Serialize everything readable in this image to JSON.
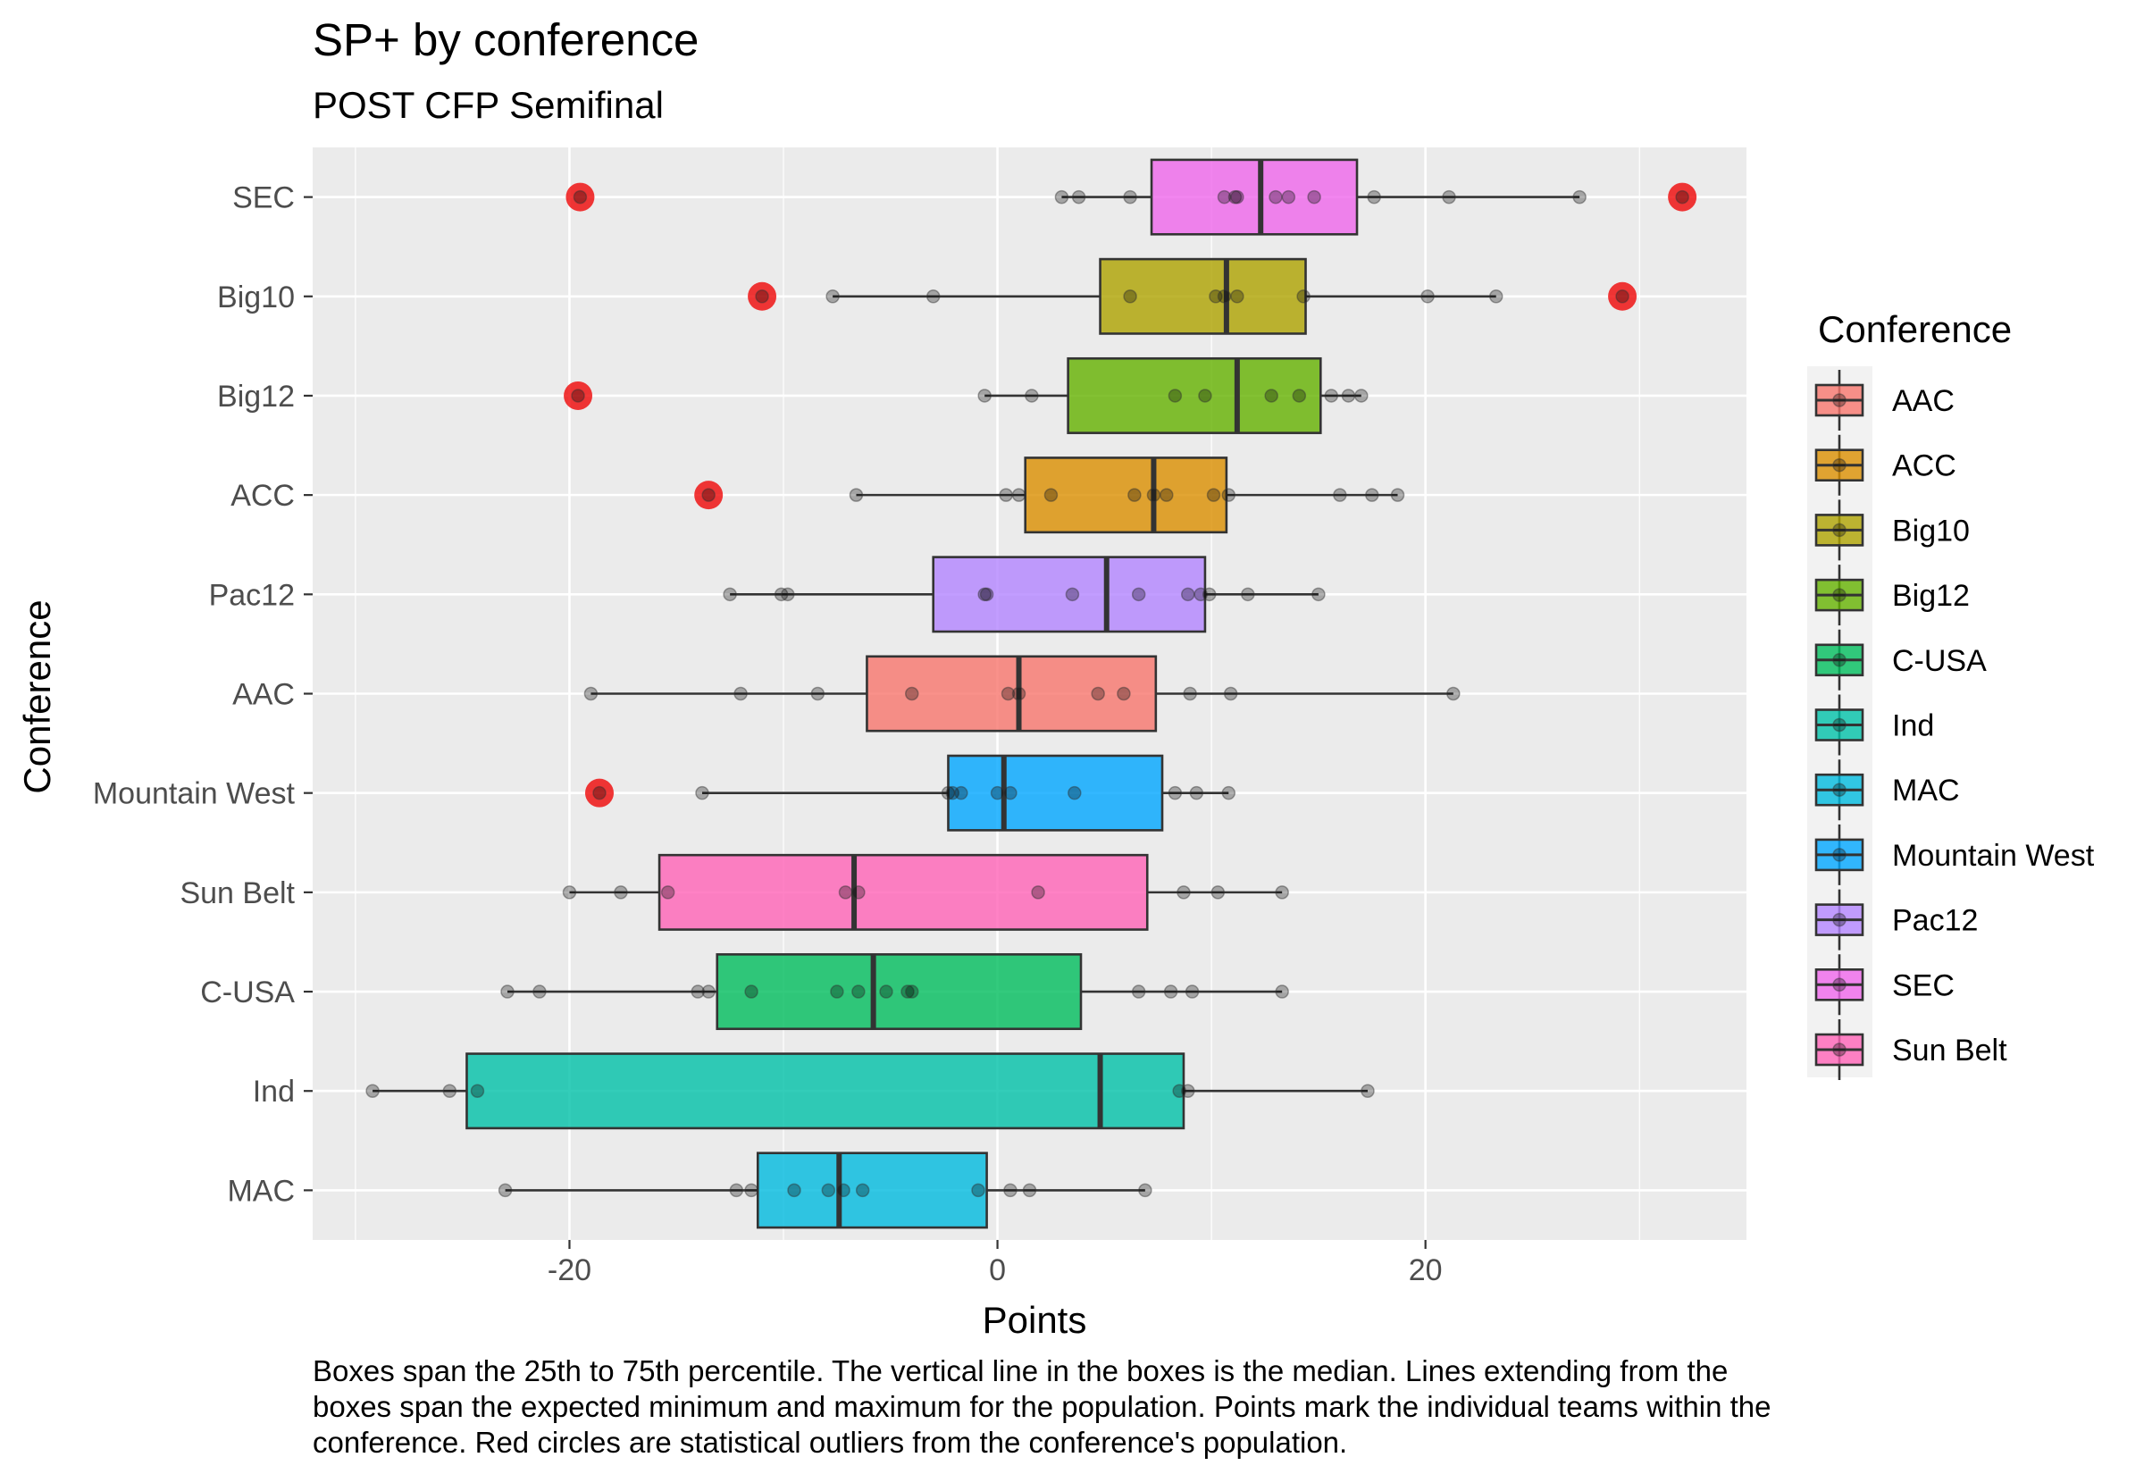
{
  "chart_data": {
    "type": "boxplot",
    "title": "SP+ by conference",
    "subtitle": "POST CFP Semifinal",
    "xlabel": "Points",
    "ylabel": "Conference",
    "xlim": [
      -32,
      35
    ],
    "x_ticks": [
      -20,
      0,
      20
    ],
    "x_tick_labels": [
      "-20",
      "0",
      "20"
    ],
    "grid": true,
    "legend_position": "right",
    "legend_title": "Conference",
    "legend": [
      "AAC",
      "ACC",
      "Big10",
      "Big12",
      "C-USA",
      "Ind",
      "MAC",
      "Mountain West",
      "Pac12",
      "SEC",
      "Sun Belt"
    ],
    "colors": {
      "AAC": "#F8766D",
      "ACC": "#DB8E00",
      "Big10": "#AEA200",
      "Big12": "#64B200",
      "C-USA": "#00BD5C",
      "Ind": "#00C1A7",
      "MAC": "#00BADE",
      "Mountain West": "#00A6FF",
      "Pac12": "#B385FF",
      "SEC": "#EF67EB",
      "Sun Belt": "#FF63B6"
    },
    "outlier_color": "#EE0000",
    "categories": [
      "SEC",
      "Big10",
      "Big12",
      "ACC",
      "Pac12",
      "AAC",
      "Mountain West",
      "Sun Belt",
      "C-USA",
      "Ind",
      "MAC"
    ],
    "series": [
      {
        "name": "SEC",
        "q1": 7.2,
        "median": 12.3,
        "q3": 16.8,
        "whisker_low": 3.0,
        "whisker_high": 27.2,
        "points": [
          3.0,
          3.8,
          6.2,
          10.6,
          11.1,
          11.2,
          13.0,
          13.6,
          14.8,
          17.6,
          21.1,
          27.2,
          -19.5,
          32.0
        ],
        "outliers": [
          -19.5,
          32.0
        ]
      },
      {
        "name": "Big10",
        "q1": 4.8,
        "median": 10.7,
        "q3": 14.4,
        "whisker_low": -7.7,
        "whisker_high": 23.3,
        "points": [
          -7.7,
          -3.0,
          6.2,
          10.2,
          10.6,
          11.2,
          14.3,
          20.1,
          23.3,
          -11.0,
          29.2
        ],
        "outliers": [
          -11.0,
          29.2
        ]
      },
      {
        "name": "Big12",
        "q1": 3.3,
        "median": 11.2,
        "q3": 15.1,
        "whisker_low": -0.6,
        "whisker_high": 17.0,
        "points": [
          -0.6,
          1.6,
          8.3,
          9.7,
          12.8,
          14.1,
          15.6,
          16.4,
          17.0,
          -19.6
        ],
        "outliers": [
          -19.6
        ]
      },
      {
        "name": "ACC",
        "q1": 1.3,
        "median": 7.3,
        "q3": 10.7,
        "whisker_low": -6.6,
        "whisker_high": 18.7,
        "points": [
          -6.6,
          0.4,
          1.0,
          2.5,
          6.4,
          7.3,
          7.9,
          10.1,
          10.8,
          16.0,
          17.5,
          18.7,
          -13.5
        ],
        "outliers": [
          -13.5
        ]
      },
      {
        "name": "Pac12",
        "q1": -3.0,
        "median": 5.1,
        "q3": 9.7,
        "whisker_low": -12.5,
        "whisker_high": 15.0,
        "points": [
          -12.5,
          -10.1,
          -9.8,
          -0.6,
          -0.5,
          3.5,
          6.6,
          8.9,
          9.5,
          9.9,
          11.7,
          15.0
        ],
        "outliers": []
      },
      {
        "name": "AAC",
        "q1": -6.1,
        "median": 1.0,
        "q3": 7.4,
        "whisker_low": -19.0,
        "whisker_high": 21.3,
        "points": [
          -19.0,
          -12.0,
          -8.4,
          -4.0,
          0.5,
          1.0,
          4.7,
          5.9,
          9.0,
          10.9,
          21.3
        ],
        "outliers": []
      },
      {
        "name": "Mountain West",
        "q1": -2.3,
        "median": 0.3,
        "q3": 7.7,
        "whisker_low": -13.8,
        "whisker_high": 10.8,
        "points": [
          -13.8,
          -2.3,
          -2.1,
          -1.7,
          0.0,
          0.6,
          3.6,
          8.3,
          9.3,
          10.8,
          -18.6
        ],
        "outliers": [
          -18.6
        ]
      },
      {
        "name": "Sun Belt",
        "q1": -15.8,
        "median": -6.7,
        "q3": 7.0,
        "whisker_low": -20.0,
        "whisker_high": 13.3,
        "points": [
          -20.0,
          -17.6,
          -15.4,
          -7.1,
          -6.5,
          1.9,
          8.7,
          10.3,
          13.3
        ],
        "outliers": []
      },
      {
        "name": "C-USA",
        "q1": -13.1,
        "median": -5.8,
        "q3": 3.9,
        "whisker_low": -22.9,
        "whisker_high": 13.3,
        "points": [
          -22.9,
          -21.4,
          -14.0,
          -13.5,
          -11.5,
          -7.5,
          -6.5,
          -5.2,
          -4.2,
          -4.0,
          6.6,
          8.1,
          9.1,
          13.3
        ],
        "outliers": []
      },
      {
        "name": "Ind",
        "q1": -24.8,
        "median": 4.8,
        "q3": 8.7,
        "whisker_low": -29.2,
        "whisker_high": 17.3,
        "points": [
          -29.2,
          -25.6,
          -24.3,
          8.5,
          8.9,
          17.3
        ],
        "outliers": []
      },
      {
        "name": "MAC",
        "q1": -11.2,
        "median": -7.4,
        "q3": -0.5,
        "whisker_low": -23.0,
        "whisker_high": 6.9,
        "points": [
          -23.0,
          -12.2,
          -11.5,
          -9.5,
          -7.9,
          -7.2,
          -6.3,
          -0.9,
          0.6,
          1.5,
          6.9
        ],
        "outliers": []
      }
    ]
  },
  "caption": {
    "line1": "Boxes span the 25th to 75th percentile. The vertical line in the boxes is the median. Lines extending from the",
    "line2": "boxes span the expected minimum and maximum for the population. Points mark the individual teams within the",
    "line3": "conference. Red circles are statistical outliers from the conference's population."
  }
}
